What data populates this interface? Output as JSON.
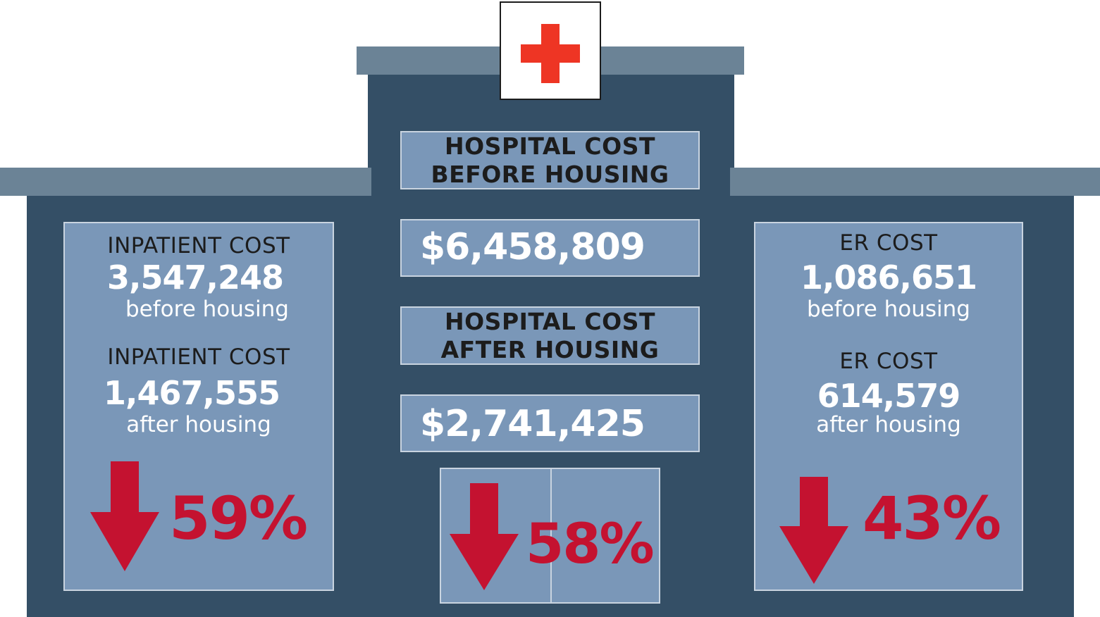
{
  "center": {
    "before_heading_line1": "HOSPITAL COST",
    "before_heading_line2": "BEFORE HOUSING",
    "before_amount": "$6,458,809",
    "after_heading_line1": "HOSPITAL COST",
    "after_heading_line2": "AFTER HOUSING",
    "after_amount": "$2,741,425",
    "reduction": "58%"
  },
  "left": {
    "label_before": "INPATIENT COST",
    "value_before": "3,547,248",
    "note_before": "before  housing",
    "label_after": "INPATIENT COST",
    "value_after": "1,467,555",
    "note_after": "after housing",
    "reduction": "59%"
  },
  "right": {
    "label_before": "ER  COST",
    "value_before": "1,086,651",
    "note_before": "before housing",
    "label_after": "ER  COST",
    "value_after": "614,579",
    "note_after": "after housing",
    "reduction": "43%"
  },
  "colors": {
    "building": "#344f66",
    "roof": "#6b8396",
    "panel": "#7a97b8",
    "arrow": "#c41230",
    "cross": "#ee3524"
  },
  "icons": [
    "red-cross-icon",
    "down-arrow-icon"
  ]
}
